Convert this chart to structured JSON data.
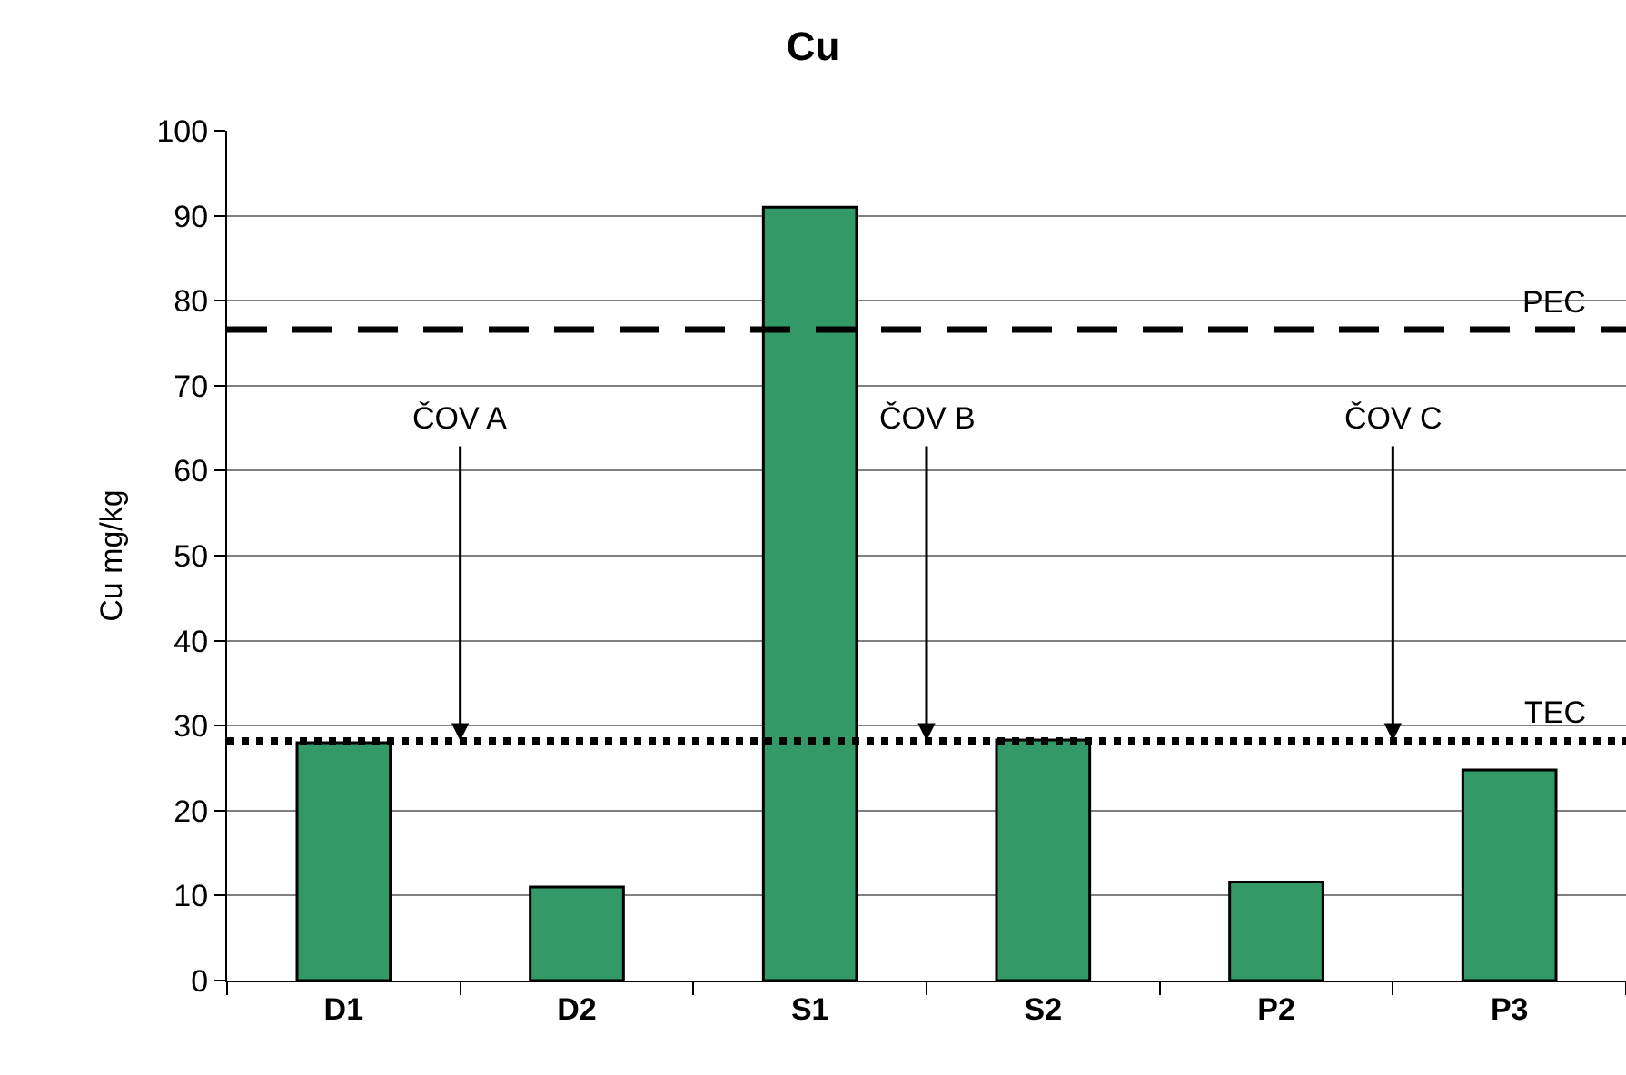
{
  "chart_data": {
    "type": "bar",
    "title": "Cu",
    "ylabel": "Cu mg/kg",
    "categories": [
      "D1",
      "D2",
      "S1",
      "S2",
      "P2",
      "P3"
    ],
    "values": [
      28,
      11,
      91,
      28.3,
      11.6,
      24.8
    ],
    "color": "#339966",
    "ylim": [
      0,
      100
    ],
    "yticks": [
      0,
      10,
      20,
      30,
      40,
      50,
      60,
      70,
      80,
      90,
      100
    ],
    "grid": "y",
    "legend": false,
    "ref_lines": [
      {
        "axis": "y",
        "value": 76.6,
        "label": "PEC",
        "line_style": "dashed",
        "color": "#000000"
      },
      {
        "axis": "y",
        "value": 28.2,
        "label": "TEC",
        "line_style": "dotted",
        "color": "#000000"
      }
    ],
    "annotations": [
      {
        "text": "ČOV A",
        "y": 28.2
      },
      {
        "text": "ČOV B",
        "y": 28.2
      },
      {
        "text": "ČOV C",
        "y": 28.2
      }
    ]
  }
}
